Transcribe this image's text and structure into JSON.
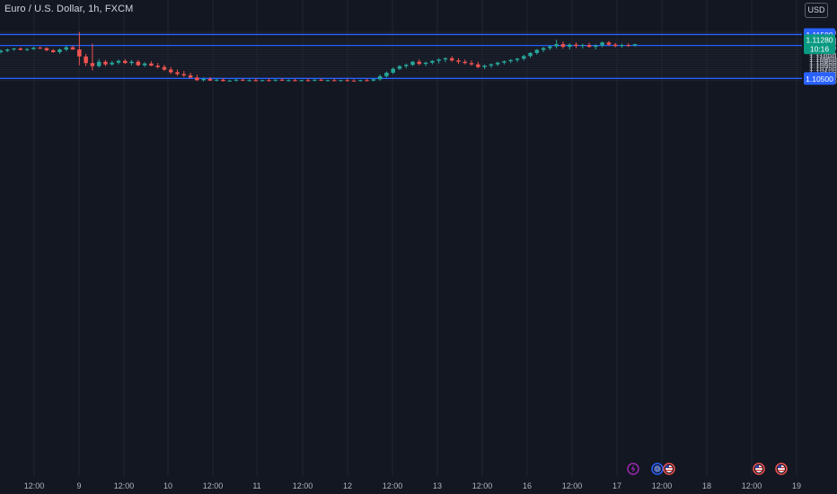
{
  "header": {
    "symbol_title": "Euro / U.S. Dollar, 1h, FXCM"
  },
  "toolbar": {
    "currency_label": "USD"
  },
  "price_badge": {
    "price": "1.11280",
    "countdown": "10:16"
  },
  "chart_data": {
    "type": "candlestick",
    "title": "Euro / U.S. Dollar, 1h, FXCM",
    "ylim": [
      1.1042,
      1.1161
    ],
    "y_ticks": [
      "1.10450",
      "1.10550",
      "1.10600",
      "1.10650",
      "1.10700",
      "1.10750",
      "1.10800",
      "1.10850",
      "1.10900",
      "1.10950",
      "1.11000",
      "1.11050",
      "1.11100",
      "1.11150",
      "1.11200",
      "1.11300",
      "1.11350",
      "1.11400",
      "1.11550"
    ],
    "x_ticks": [
      "12:00",
      "9",
      "12:00",
      "10",
      "12:00",
      "11",
      "12:00",
      "12",
      "12:00",
      "13",
      "12:00",
      "16",
      "12:00",
      "17",
      "12:00",
      "18",
      "12:00",
      "19"
    ],
    "horizontal_levels": [
      "1.11500",
      "1.11250",
      "1.10500"
    ],
    "last_price": "1.11280",
    "grid": true,
    "colors": {
      "up": "#26a69a",
      "down": "#ef5350",
      "level": "#2962ff",
      "badge": "#089981",
      "grid": "#1f2430",
      "text": "#b2b5be",
      "background": "#131722"
    },
    "event_markers": [
      {
        "icon": "lightning-icon",
        "color": "#9c27b0"
      },
      {
        "icon": "eu-flag-icon",
        "color": "#2962ff"
      },
      {
        "icon": "us-flag-icon",
        "color": "#ef5350"
      },
      {
        "icon": "us-flag-icon",
        "color": "#ef5350"
      },
      {
        "icon": "us-flag-icon",
        "color": "#ef5350"
      }
    ],
    "candles": [
      [
        1.111,
        1.1116,
        1.1107,
        1.1113
      ],
      [
        1.1113,
        1.1118,
        1.111,
        1.1116
      ],
      [
        1.1116,
        1.112,
        1.1113,
        1.1118
      ],
      [
        1.1118,
        1.1121,
        1.1114,
        1.1115
      ],
      [
        1.1115,
        1.1119,
        1.1112,
        1.1117
      ],
      [
        1.1117,
        1.1122,
        1.1115,
        1.112
      ],
      [
        1.112,
        1.1123,
        1.1117,
        1.1119
      ],
      [
        1.1119,
        1.1121,
        1.1112,
        1.1114
      ],
      [
        1.1114,
        1.1117,
        1.1108,
        1.111
      ],
      [
        1.111,
        1.1118,
        1.1106,
        1.1116
      ],
      [
        1.1116,
        1.1124,
        1.1112,
        1.1121
      ],
      [
        1.1121,
        1.1125,
        1.1115,
        1.1116
      ],
      [
        1.1116,
        1.1156,
        1.108,
        1.11
      ],
      [
        1.11,
        1.1106,
        1.1078,
        1.1085
      ],
      [
        1.1085,
        1.1129,
        1.1068,
        1.1078
      ],
      [
        1.1078,
        1.1094,
        1.1075,
        1.1088
      ],
      [
        1.1088,
        1.1092,
        1.1078,
        1.1082
      ],
      [
        1.1082,
        1.109,
        1.1079,
        1.1086
      ],
      [
        1.1086,
        1.1093,
        1.1082,
        1.109
      ],
      [
        1.109,
        1.1094,
        1.1083,
        1.1085
      ],
      [
        1.1085,
        1.1092,
        1.108,
        1.1088
      ],
      [
        1.1088,
        1.1092,
        1.1078,
        1.108
      ],
      [
        1.108,
        1.1087,
        1.1076,
        1.1084
      ],
      [
        1.1084,
        1.1089,
        1.1078,
        1.1079
      ],
      [
        1.1079,
        1.1085,
        1.1073,
        1.1076
      ],
      [
        1.1076,
        1.1081,
        1.1067,
        1.107
      ],
      [
        1.107,
        1.1076,
        1.106,
        1.1064
      ],
      [
        1.1064,
        1.107,
        1.1056,
        1.106
      ],
      [
        1.106,
        1.1067,
        1.1053,
        1.1057
      ],
      [
        1.1057,
        1.1063,
        1.105,
        1.1052
      ],
      [
        1.1052,
        1.1058,
        1.1044,
        1.1046
      ],
      [
        1.1046,
        1.1052,
        1.1043,
        1.1049
      ],
      [
        1.1049,
        1.1053,
        1.1044,
        1.1045
      ],
      [
        1.1045,
        1.1049,
        1.1043,
        1.1047
      ],
      [
        1.1047,
        1.105,
        1.1043,
        1.1044
      ],
      [
        1.1044,
        1.1047,
        1.1043,
        1.1045
      ],
      [
        1.1045,
        1.1049,
        1.1043,
        1.1047
      ],
      [
        1.1047,
        1.1049,
        1.1044,
        1.1045
      ],
      [
        1.1045,
        1.1048,
        1.1043,
        1.1046
      ],
      [
        1.1046,
        1.105,
        1.1043,
        1.1044
      ],
      [
        1.1044,
        1.1047,
        1.1043,
        1.1046
      ],
      [
        1.1046,
        1.105,
        1.1043,
        1.1045
      ],
      [
        1.1045,
        1.1048,
        1.1043,
        1.1047
      ],
      [
        1.1047,
        1.105,
        1.1044,
        1.1045
      ],
      [
        1.1045,
        1.1048,
        1.1043,
        1.1046
      ],
      [
        1.1046,
        1.1049,
        1.1043,
        1.1044
      ],
      [
        1.1044,
        1.1047,
        1.1043,
        1.1046
      ],
      [
        1.1046,
        1.105,
        1.1043,
        1.1045
      ],
      [
        1.1045,
        1.1048,
        1.1043,
        1.1047
      ],
      [
        1.1047,
        1.105,
        1.1044,
        1.1045
      ],
      [
        1.1045,
        1.1047,
        1.1043,
        1.1046
      ],
      [
        1.1046,
        1.1049,
        1.1043,
        1.1044
      ],
      [
        1.1044,
        1.1047,
        1.1043,
        1.1046
      ],
      [
        1.1046,
        1.1049,
        1.1043,
        1.1045
      ],
      [
        1.1045,
        1.1048,
        1.1043,
        1.1044
      ],
      [
        1.1044,
        1.1047,
        1.1043,
        1.1046
      ],
      [
        1.1046,
        1.1049,
        1.1043,
        1.1045
      ],
      [
        1.1045,
        1.105,
        1.1043,
        1.1048
      ],
      [
        1.1048,
        1.1059,
        1.1045,
        1.1055
      ],
      [
        1.1055,
        1.1066,
        1.1052,
        1.1063
      ],
      [
        1.1063,
        1.1075,
        1.106,
        1.1072
      ],
      [
        1.1072,
        1.108,
        1.1069,
        1.1078
      ],
      [
        1.1078,
        1.1084,
        1.1073,
        1.1081
      ],
      [
        1.1081,
        1.109,
        1.1078,
        1.1088
      ],
      [
        1.1088,
        1.1093,
        1.108,
        1.1083
      ],
      [
        1.1083,
        1.1088,
        1.1078,
        1.1086
      ],
      [
        1.1086,
        1.1092,
        1.1082,
        1.109
      ],
      [
        1.109,
        1.1096,
        1.1084,
        1.1093
      ],
      [
        1.1093,
        1.1098,
        1.1087,
        1.1096
      ],
      [
        1.1096,
        1.1101,
        1.1088,
        1.1091
      ],
      [
        1.1091,
        1.1096,
        1.1083,
        1.1088
      ],
      [
        1.1088,
        1.1093,
        1.1082,
        1.1085
      ],
      [
        1.1085,
        1.1091,
        1.1079,
        1.1082
      ],
      [
        1.1082,
        1.1088,
        1.1073,
        1.1076
      ],
      [
        1.1076,
        1.1082,
        1.1071,
        1.1079
      ],
      [
        1.1079,
        1.1084,
        1.1074,
        1.1082
      ],
      [
        1.1082,
        1.1088,
        1.1078,
        1.1086
      ],
      [
        1.1086,
        1.1091,
        1.1082,
        1.1089
      ],
      [
        1.1089,
        1.1094,
        1.1085,
        1.1092
      ],
      [
        1.1092,
        1.1097,
        1.1087,
        1.1095
      ],
      [
        1.1095,
        1.1104,
        1.1091,
        1.1101
      ],
      [
        1.1101,
        1.111,
        1.1097,
        1.1108
      ],
      [
        1.1108,
        1.1117,
        1.1104,
        1.1115
      ],
      [
        1.1115,
        1.1122,
        1.111,
        1.1119
      ],
      [
        1.1119,
        1.1126,
        1.1114,
        1.1123
      ],
      [
        1.1123,
        1.1138,
        1.1118,
        1.1128
      ],
      [
        1.1128,
        1.1134,
        1.1118,
        1.1122
      ],
      [
        1.1122,
        1.113,
        1.1116,
        1.1127
      ],
      [
        1.1127,
        1.1132,
        1.1119,
        1.1124
      ],
      [
        1.1124,
        1.1129,
        1.1118,
        1.1126
      ],
      [
        1.1126,
        1.1131,
        1.112,
        1.1122
      ],
      [
        1.1122,
        1.1127,
        1.1116,
        1.1125
      ],
      [
        1.1125,
        1.1134,
        1.1121,
        1.1132
      ],
      [
        1.1132,
        1.1135,
        1.1124,
        1.1127
      ],
      [
        1.1127,
        1.1131,
        1.1121,
        1.1124
      ],
      [
        1.1124,
        1.1129,
        1.112,
        1.1126
      ],
      [
        1.1126,
        1.113,
        1.1122,
        1.1125
      ],
      [
        1.1125,
        1.1129,
        1.1122,
        1.1128
      ]
    ]
  }
}
